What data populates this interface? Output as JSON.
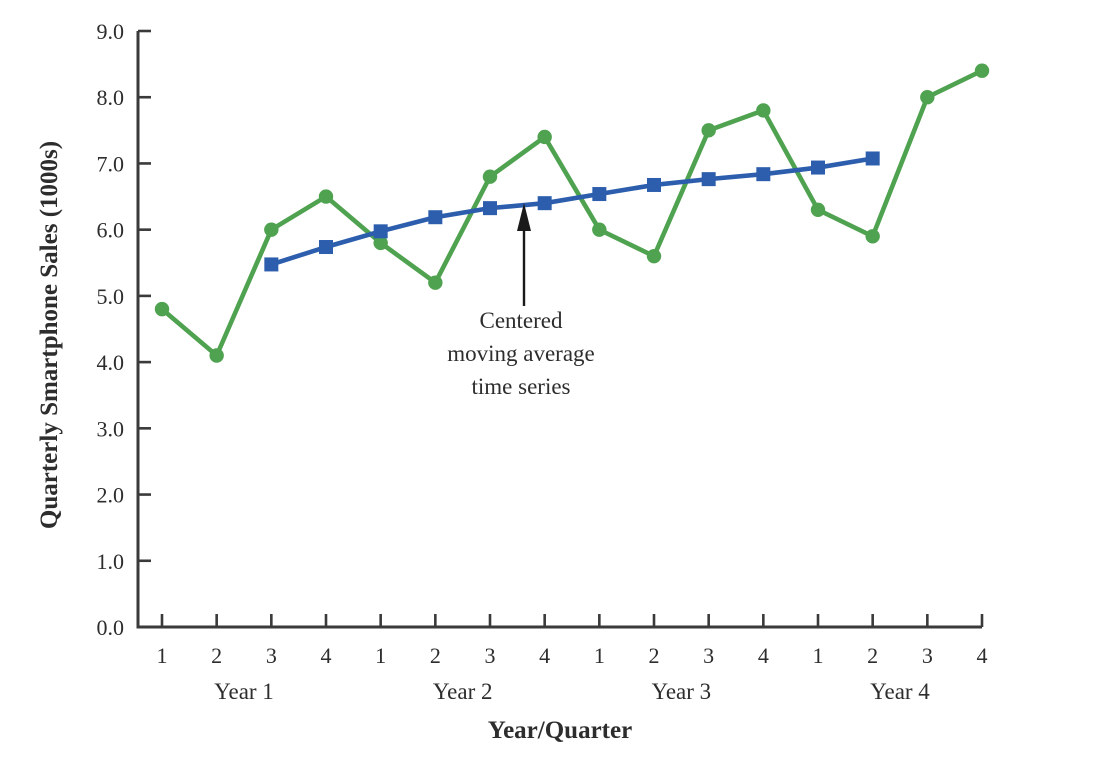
{
  "chart_data": {
    "type": "line",
    "xlabel": "Year/Quarter",
    "ylabel": "Quarterly Smartphone Sales (1000s)",
    "ylim": [
      0.0,
      9.0
    ],
    "ytick_step": 1.0,
    "ytick_labels": [
      "0.0",
      "1.0",
      "2.0",
      "3.0",
      "4.0",
      "5.0",
      "6.0",
      "7.0",
      "8.0",
      "9.0"
    ],
    "x_quarter_labels": [
      "1",
      "2",
      "3",
      "4",
      "1",
      "2",
      "3",
      "4",
      "1",
      "2",
      "3",
      "4",
      "1",
      "2",
      "3",
      "4"
    ],
    "year_labels": [
      "Year 1",
      "Year 2",
      "Year 3",
      "Year 4"
    ],
    "grid": false,
    "axis_color": "#3a3a3a",
    "text_color": "#2d2d2d",
    "series": [
      {
        "name": "Quarterly smartphone sales",
        "marker": "circle",
        "color": "#4fa24f",
        "start_index": 0,
        "values": [
          4.8,
          4.1,
          6.0,
          6.5,
          5.8,
          5.2,
          6.8,
          7.4,
          6.0,
          5.6,
          7.5,
          7.8,
          6.3,
          5.9,
          8.0,
          8.4
        ]
      },
      {
        "name": "Centered moving average time series",
        "marker": "square",
        "color": "#2c5ead",
        "start_index": 2,
        "values": [
          5.475,
          5.738,
          5.975,
          6.188,
          6.325,
          6.4,
          6.538,
          6.675,
          6.763,
          6.838,
          6.938,
          7.075
        ]
      }
    ],
    "annotation": {
      "lines": [
        "Centered",
        "moving average",
        "time series"
      ]
    }
  }
}
